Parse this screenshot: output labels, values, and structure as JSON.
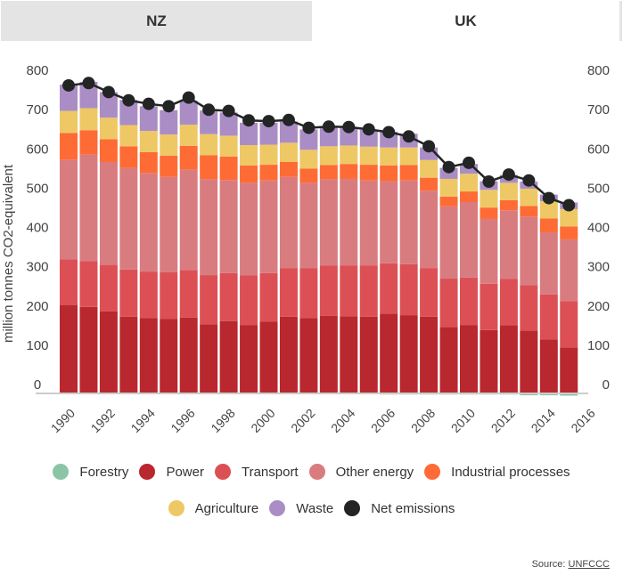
{
  "tabs": [
    {
      "label": "NZ",
      "active": false
    },
    {
      "label": "UK",
      "active": true
    }
  ],
  "chart_data": {
    "type": "bar",
    "stacked": true,
    "title": "",
    "xlabel": "",
    "ylabel": "million tonnes CO2-equivalent",
    "ylim": [
      0,
      800
    ],
    "yticks": [
      0,
      100,
      200,
      300,
      400,
      500,
      600,
      700,
      800
    ],
    "xtick_labels": [
      "1990",
      "1992",
      "1994",
      "1996",
      "1998",
      "2000",
      "2002",
      "2004",
      "2006",
      "2008",
      "2010",
      "2012",
      "2014",
      "2016"
    ],
    "categories": [
      1990,
      1991,
      1992,
      1993,
      1994,
      1995,
      1996,
      1997,
      1998,
      1999,
      2000,
      2001,
      2002,
      2003,
      2004,
      2005,
      2006,
      2007,
      2008,
      2009,
      2010,
      2011,
      2012,
      2013,
      2014,
      2015
    ],
    "series": [
      {
        "name": "Forestry",
        "color": "#8cc5a6",
        "values": [
          -2,
          -1,
          -1,
          -1,
          -1,
          -1,
          -1,
          -1,
          -1,
          -1,
          -1,
          -2,
          -3,
          -3,
          -3,
          -4,
          -5,
          -5,
          -5,
          -5,
          -5,
          -5,
          -5,
          -7,
          -7,
          -8
        ]
      },
      {
        "name": "Power",
        "color": "#b8282e",
        "values": [
          223,
          218,
          207,
          193,
          190,
          187,
          191,
          174,
          182,
          172,
          181,
          193,
          190,
          195,
          194,
          193,
          201,
          197,
          193,
          167,
          172,
          159,
          171,
          158,
          135,
          115
        ]
      },
      {
        "name": "Transport",
        "color": "#dc5055",
        "values": [
          116,
          117,
          118,
          120,
          118,
          119,
          121,
          125,
          122,
          126,
          123,
          124,
          127,
          128,
          129,
          130,
          128,
          130,
          124,
          123,
          121,
          118,
          118,
          115,
          115,
          118
        ]
      },
      {
        "name": "Other energy",
        "color": "#d97c80",
        "values": [
          254,
          271,
          262,
          259,
          251,
          243,
          256,
          244,
          237,
          236,
          236,
          232,
          217,
          220,
          221,
          217,
          209,
          213,
          197,
          184,
          192,
          165,
          175,
          175,
          158,
          157
        ]
      },
      {
        "name": "Industrial processes",
        "color": "#fe6b35",
        "values": [
          68,
          62,
          58,
          55,
          53,
          54,
          60,
          61,
          60,
          44,
          40,
          38,
          36,
          36,
          38,
          40,
          40,
          39,
          33,
          25,
          27,
          29,
          26,
          27,
          35,
          33
        ]
      },
      {
        "name": "Agriculture",
        "color": "#eec864",
        "values": [
          56,
          56,
          55,
          54,
          54,
          54,
          54,
          54,
          53,
          52,
          51,
          49,
          48,
          48,
          47,
          46,
          46,
          45,
          45,
          45,
          45,
          45,
          44,
          44,
          44,
          44
        ]
      },
      {
        "name": "Waste",
        "color": "#ab8dc5",
        "values": [
          67,
          67,
          65,
          64,
          63,
          62,
          61,
          60,
          59,
          57,
          56,
          54,
          52,
          50,
          47,
          43,
          40,
          35,
          32,
          28,
          25,
          22,
          20,
          18,
          17,
          17
        ]
      },
      {
        "name": "Net emissions",
        "color": "#222524",
        "type": "line",
        "values": [
          782,
          788,
          765,
          744,
          735,
          729,
          751,
          720,
          717,
          693,
          691,
          694,
          674,
          677,
          676,
          670,
          663,
          652,
          627,
          574,
          585,
          537,
          555,
          540,
          495,
          477
        ]
      }
    ],
    "legend_position": "bottom",
    "grid": false
  },
  "source": {
    "label": "Source:",
    "link_text": "UNFCCC"
  }
}
